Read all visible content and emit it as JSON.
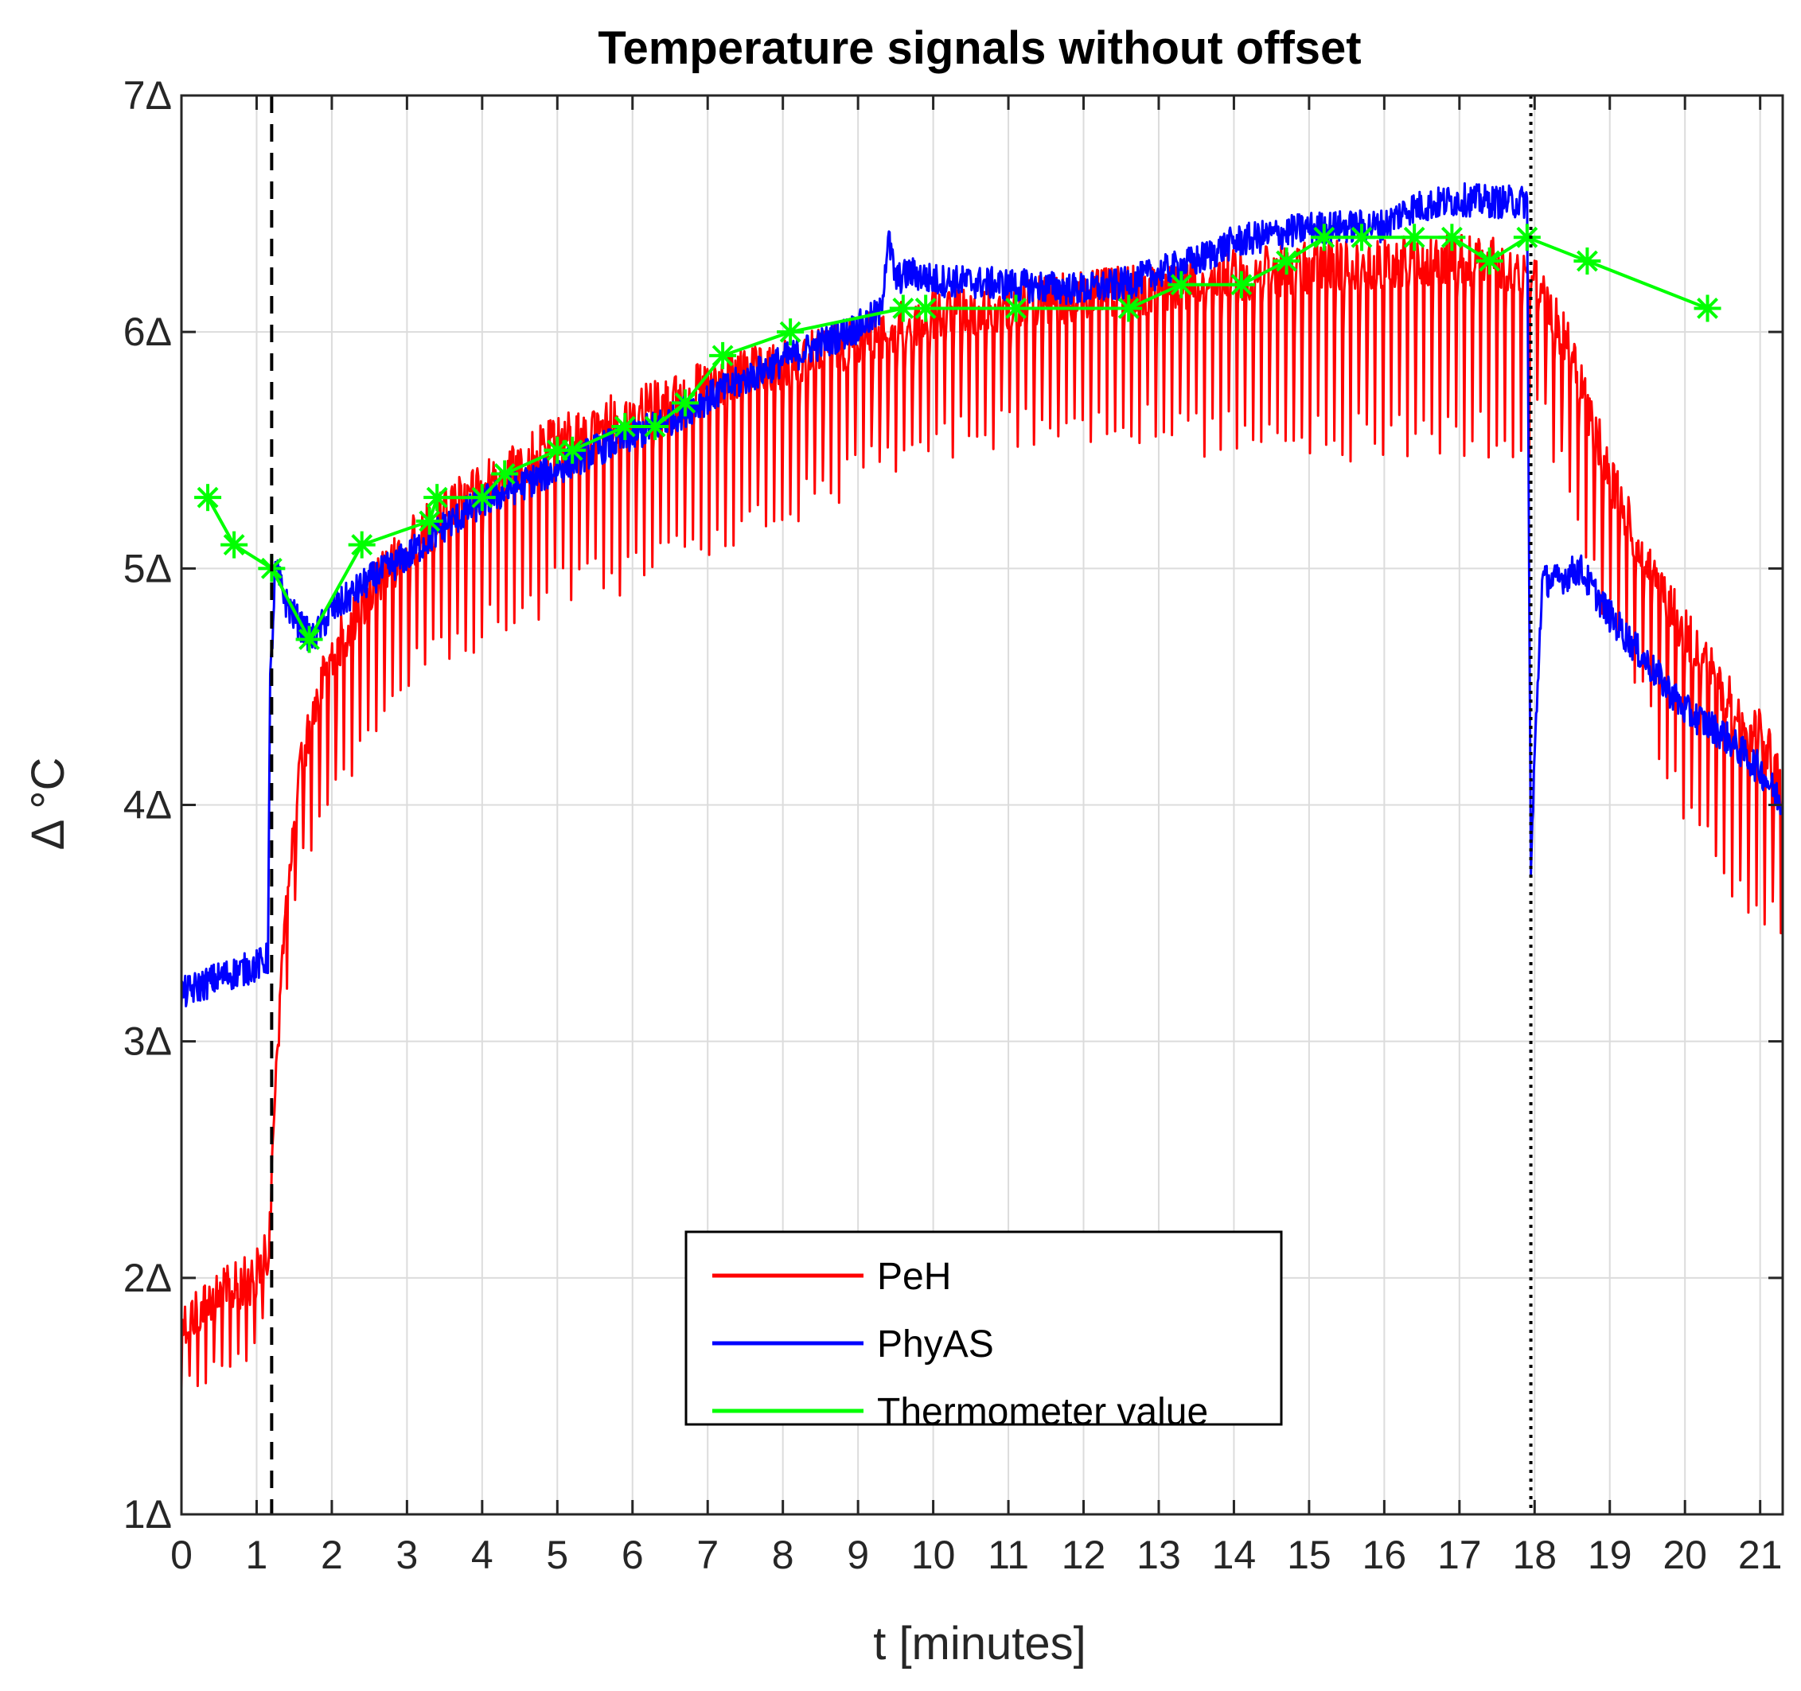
{
  "chart_data": {
    "type": "line",
    "title": "Temperature signals without offset",
    "xlabel": "t [minutes]",
    "ylabel": "Δ °C",
    "xlim": [
      0,
      21.3
    ],
    "ylim": [
      1,
      7
    ],
    "grid": true,
    "legend_position": "bottom-center",
    "x_ticks": [
      0,
      1,
      2,
      3,
      4,
      5,
      6,
      7,
      8,
      9,
      10,
      11,
      12,
      13,
      14,
      15,
      16,
      17,
      18,
      19,
      20,
      21
    ],
    "x_tick_labels": [
      "0",
      "1",
      "2",
      "3",
      "4",
      "5",
      "6",
      "7",
      "8",
      "9",
      "10",
      "11",
      "12",
      "13",
      "14",
      "15",
      "16",
      "17",
      "18",
      "19",
      "20",
      "21"
    ],
    "y_ticks": [
      1,
      2,
      3,
      4,
      5,
      6,
      7
    ],
    "y_tick_labels": [
      "1Δ",
      "2Δ",
      "3Δ",
      "4Δ",
      "5Δ",
      "6Δ",
      "7Δ"
    ],
    "vlines": [
      {
        "name": "start-marker",
        "x": 1.2,
        "style": "dashed",
        "color": "#000000"
      },
      {
        "name": "end-marker",
        "x": 17.95,
        "style": "dotted",
        "color": "#000000"
      }
    ],
    "series": [
      {
        "name": "PeH",
        "color": "#ff0000",
        "x": [
          0,
          0.3,
          0.6,
          0.9,
          1.15,
          1.2,
          1.3,
          1.45,
          1.6,
          1.8,
          2.0,
          2.3,
          2.6,
          3.0,
          3.5,
          4.0,
          4.5,
          5.0,
          5.5,
          6.0,
          6.5,
          7.0,
          7.5,
          8.0,
          8.5,
          9.0,
          9.5,
          10,
          11,
          12,
          13,
          14,
          15,
          16,
          17,
          17.9,
          18.1,
          18.5,
          19,
          19.5,
          20,
          20.5,
          21,
          21.3
        ],
        "values": [
          1.9,
          2.0,
          2.05,
          2.1,
          2.2,
          2.6,
          3.3,
          3.9,
          4.3,
          4.55,
          4.75,
          4.9,
          5.05,
          5.2,
          5.35,
          5.45,
          5.55,
          5.65,
          5.7,
          5.78,
          5.82,
          5.88,
          5.93,
          5.97,
          6.02,
          6.08,
          6.12,
          6.18,
          6.22,
          6.26,
          6.3,
          6.35,
          6.38,
          6.4,
          6.42,
          6.38,
          6.3,
          6.0,
          5.5,
          5.1,
          4.85,
          4.6,
          4.4,
          4.2
        ],
        "dip_values": [
          1.5,
          1.5,
          1.6,
          1.6,
          1.8,
          2.3,
          3.0,
          3.3,
          3.7,
          3.8,
          3.9,
          4.0,
          4.25,
          4.45,
          4.55,
          4.65,
          4.75,
          4.8,
          4.85,
          4.9,
          4.95,
          5.05,
          5.1,
          5.15,
          5.25,
          5.3,
          5.4,
          5.45,
          5.5,
          5.5,
          5.5,
          5.45,
          5.45,
          5.45,
          5.45,
          5.45,
          5.6,
          5.2,
          4.7,
          4.3,
          3.9,
          3.6,
          3.5,
          3.4
        ]
      },
      {
        "name": "PhyAS",
        "color": "#0000ff",
        "x": [
          0,
          0.5,
          1.0,
          1.15,
          1.18,
          1.25,
          1.4,
          1.6,
          1.75,
          2.0,
          2.5,
          3.0,
          3.5,
          4.0,
          4.5,
          5.0,
          5.5,
          6.0,
          6.5,
          7.0,
          7.5,
          8.0,
          8.5,
          9.0,
          9.3,
          9.4,
          9.5,
          9.7,
          10,
          11,
          12,
          12.5,
          13,
          13.5,
          14,
          15,
          16,
          16.3,
          17,
          17.5,
          17.9,
          17.95,
          18.0,
          18.1,
          18.3,
          18.6,
          19,
          19.5,
          20,
          20.5,
          21,
          21.3
        ],
        "values": [
          3.2,
          3.27,
          3.32,
          3.35,
          4.5,
          5.0,
          4.85,
          4.75,
          4.7,
          4.82,
          4.95,
          5.05,
          5.18,
          5.28,
          5.35,
          5.42,
          5.5,
          5.56,
          5.63,
          5.72,
          5.8,
          5.88,
          5.95,
          6.02,
          6.08,
          6.4,
          6.22,
          6.25,
          6.22,
          6.2,
          6.18,
          6.2,
          6.25,
          6.3,
          6.38,
          6.44,
          6.45,
          6.52,
          6.56,
          6.55,
          6.55,
          3.7,
          4.2,
          4.95,
          4.95,
          5.0,
          4.8,
          4.6,
          4.4,
          4.3,
          4.15,
          4.0
        ]
      },
      {
        "name": "Thermometer value",
        "color": "#00ff00",
        "x": [
          0.35,
          0.7,
          1.2,
          1.7,
          2.4,
          3.3,
          3.4,
          4.0,
          4.3,
          5.0,
          5.2,
          5.9,
          6.3,
          6.7,
          7.2,
          8.1,
          9.6,
          9.9,
          11.1,
          12.6,
          13.3,
          14.1,
          14.7,
          15.2,
          15.7,
          16.4,
          16.9,
          17.4,
          17.9,
          18.7,
          20.3
        ],
        "values": [
          5.3,
          5.1,
          5.0,
          4.7,
          5.1,
          5.2,
          5.3,
          5.3,
          5.4,
          5.5,
          5.5,
          5.6,
          5.6,
          5.7,
          5.9,
          6.0,
          6.1,
          6.1,
          6.1,
          6.1,
          6.2,
          6.2,
          6.3,
          6.4,
          6.4,
          6.4,
          6.4,
          6.3,
          6.4,
          6.3,
          6.1
        ]
      }
    ]
  }
}
